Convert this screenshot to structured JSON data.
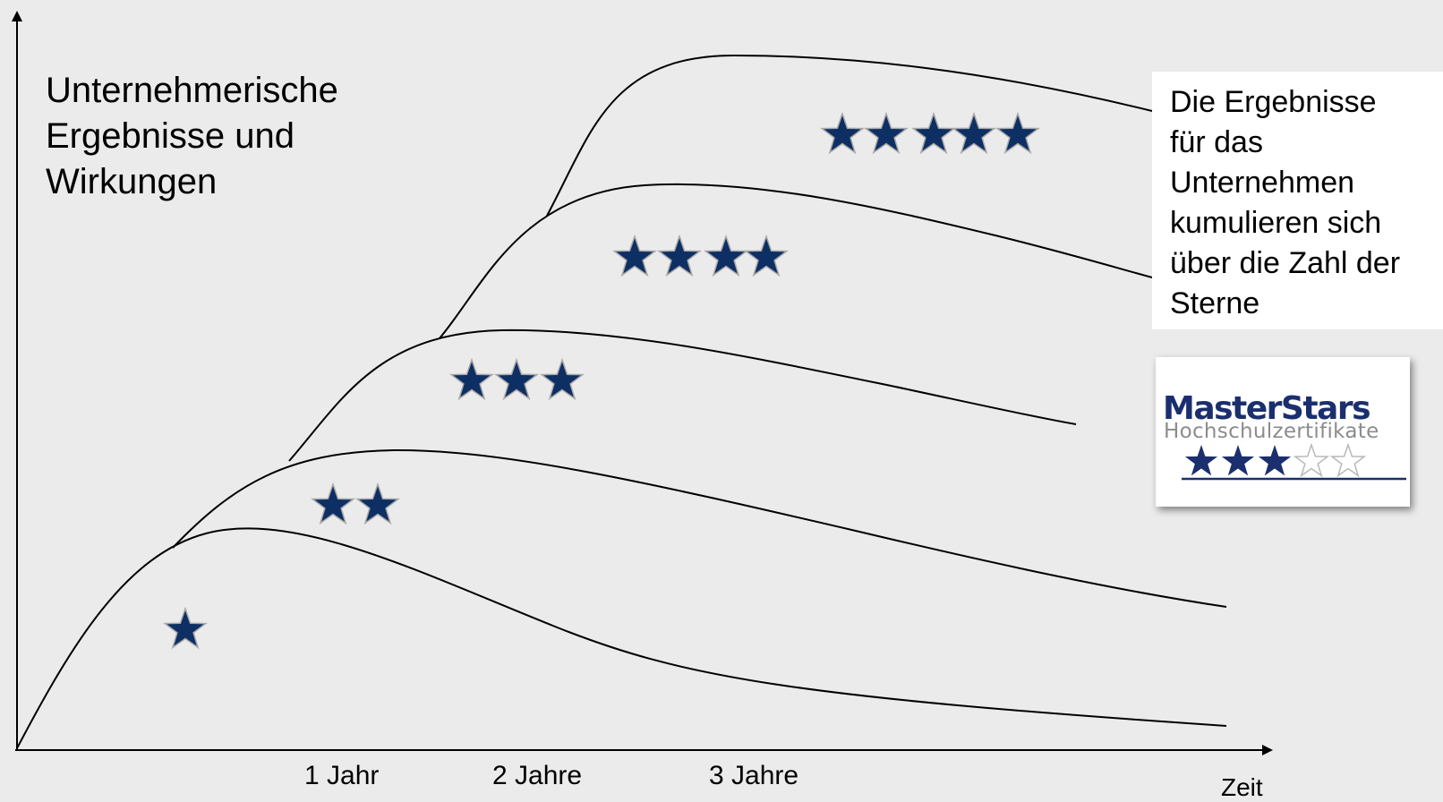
{
  "diagram": {
    "y_title": [
      "Unternehmerische",
      "Ergebnisse und",
      "Wirkungen"
    ],
    "x_title": "Zeit",
    "x_ticks": [
      "1 Jahr",
      "2 Jahre",
      "3 Jahre"
    ],
    "note": [
      "Die Ergebnisse",
      "für das",
      "Unternehmen",
      "kumulieren sich",
      "über die Zahl der",
      "Sterne"
    ],
    "star_levels": [
      1,
      2,
      3,
      4,
      5
    ],
    "colors": {
      "background": "#ebebeb",
      "star": "#0d2f63",
      "curve": "#000000",
      "logo_text": "#1b2f6e",
      "logo_subtext": "#8c8c8c"
    }
  },
  "logo": {
    "name": "MasterStars",
    "subtitle": "Hochschulzertifikate",
    "rating": 3,
    "max_rating": 5
  }
}
